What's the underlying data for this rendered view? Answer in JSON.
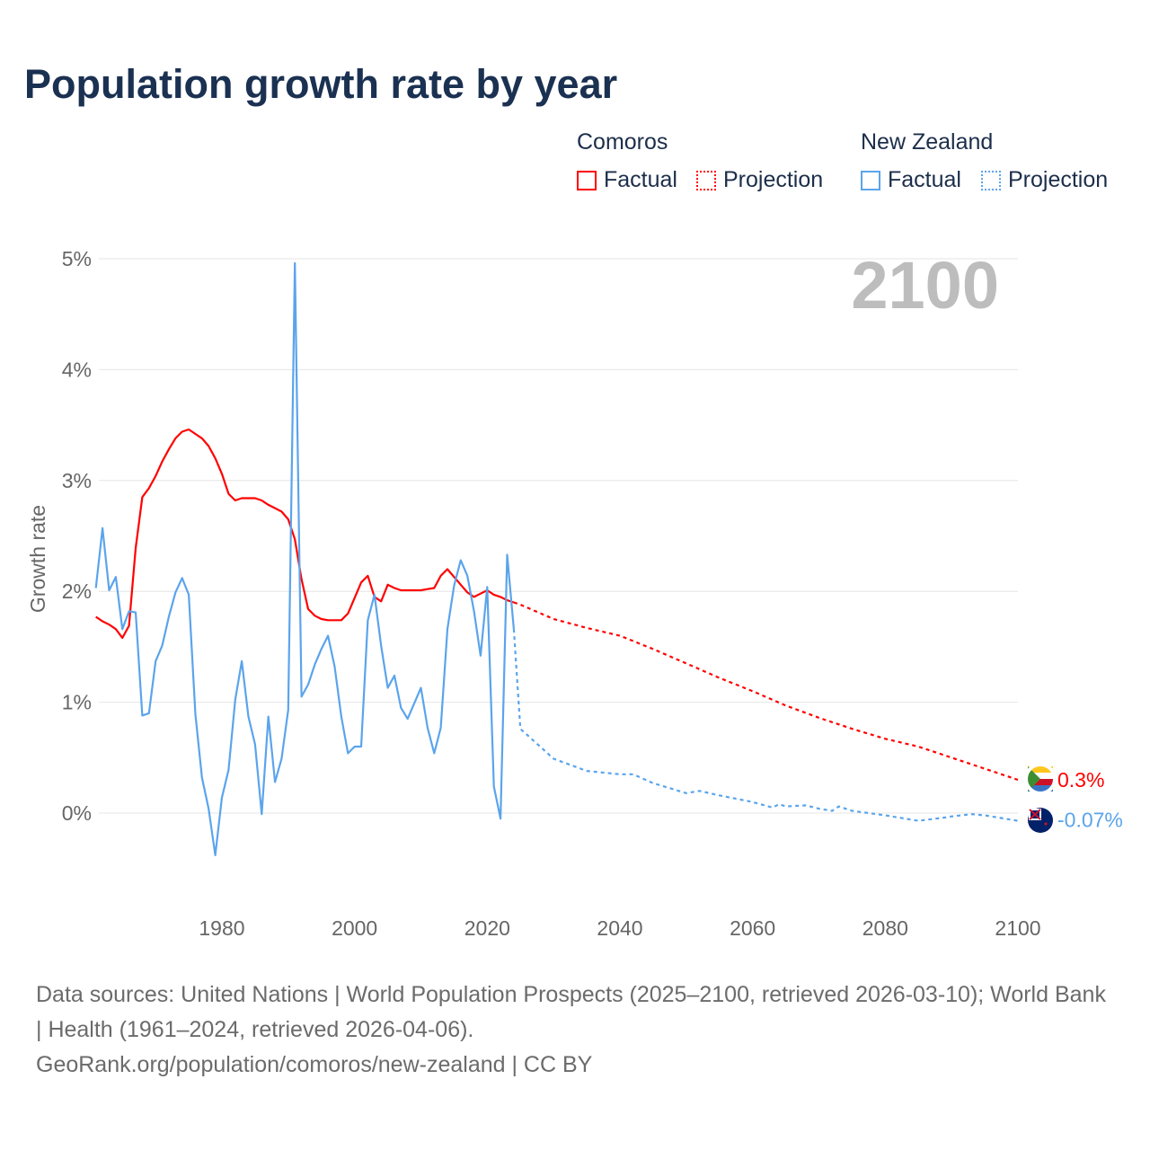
{
  "title": "Population growth rate by year",
  "legend": {
    "groups": [
      {
        "name": "Comoros",
        "factual": "Factual",
        "projection": "Projection",
        "color": "#ff0000"
      },
      {
        "name": "New Zealand",
        "factual": "Factual",
        "projection": "Projection",
        "color": "#5ba4ec"
      }
    ]
  },
  "year_display": "2100",
  "footer": {
    "line1": "Data sources: United Nations | World Population Prospects (2025–2100, retrieved 2026-03-10); World Bank | Health (1961–2024, retrieved 2026-04-06).",
    "line2": "GeoRank.org/population/comoros/new-zealand | CC BY"
  },
  "chart_data": {
    "type": "line",
    "title": "Population growth rate by year",
    "xlabel": "",
    "ylabel": "Growth rate",
    "xlim": [
      1961,
      2100
    ],
    "ylim": [
      -0.8,
      5.0
    ],
    "x_ticks": [
      1980,
      2000,
      2020,
      2040,
      2060,
      2080,
      2100
    ],
    "x_tick_labels": [
      "1980",
      "2000",
      "2020",
      "2040",
      "2060",
      "2080",
      "2100"
    ],
    "y_ticks": [
      0,
      1,
      2,
      3,
      4,
      5
    ],
    "y_tick_labels": [
      "0%",
      "1%",
      "2%",
      "3%",
      "4%",
      "5%"
    ],
    "grid": true,
    "legend_position": "top-right",
    "series": [
      {
        "name": "Comoros Factual",
        "color": "#ff0000",
        "style": "solid",
        "x": [
          1961,
          1962,
          1963,
          1964,
          1965,
          1966,
          1967,
          1968,
          1969,
          1970,
          1971,
          1972,
          1973,
          1974,
          1975,
          1976,
          1977,
          1978,
          1979,
          1980,
          1981,
          1982,
          1983,
          1984,
          1985,
          1986,
          1987,
          1988,
          1989,
          1990,
          1991,
          1992,
          1993,
          1994,
          1995,
          1996,
          1997,
          1998,
          1999,
          2000,
          2001,
          2002,
          2003,
          2004,
          2005,
          2006,
          2007,
          2008,
          2009,
          2010,
          2011,
          2012,
          2013,
          2014,
          2015,
          2016,
          2017,
          2018,
          2019,
          2020,
          2021,
          2022,
          2023,
          2024
        ],
        "values": [
          1.77,
          1.73,
          1.7,
          1.66,
          1.58,
          1.69,
          2.39,
          2.85,
          2.93,
          3.04,
          3.17,
          3.28,
          3.38,
          3.44,
          3.46,
          3.42,
          3.38,
          3.31,
          3.2,
          3.06,
          2.88,
          2.82,
          2.84,
          2.84,
          2.84,
          2.82,
          2.78,
          2.75,
          2.72,
          2.65,
          2.47,
          2.11,
          1.84,
          1.78,
          1.75,
          1.74,
          1.74,
          1.74,
          1.8,
          1.94,
          2.08,
          2.14,
          1.95,
          1.91,
          2.06,
          2.03,
          2.01,
          2.01,
          2.01,
          2.01,
          2.02,
          2.03,
          2.14,
          2.2,
          2.13,
          2.06,
          1.99,
          1.95,
          1.98,
          2.01,
          1.97,
          1.95,
          1.92,
          1.9
        ]
      },
      {
        "name": "Comoros Projection",
        "color": "#ff0000",
        "style": "dotted",
        "x": [
          2024,
          2025,
          2030,
          2035,
          2040,
          2045,
          2050,
          2055,
          2060,
          2065,
          2070,
          2075,
          2080,
          2085,
          2090,
          2095,
          2100
        ],
        "values": [
          1.9,
          1.88,
          1.75,
          1.67,
          1.6,
          1.48,
          1.35,
          1.22,
          1.1,
          0.97,
          0.86,
          0.76,
          0.67,
          0.6,
          0.5,
          0.4,
          0.3
        ]
      },
      {
        "name": "New Zealand Factual",
        "color": "#5ba4ec",
        "style": "solid",
        "x": [
          1961,
          1962,
          1963,
          1964,
          1965,
          1966,
          1967,
          1968,
          1969,
          1970,
          1971,
          1972,
          1973,
          1974,
          1975,
          1976,
          1977,
          1978,
          1979,
          1980,
          1981,
          1982,
          1983,
          1984,
          1985,
          1986,
          1987,
          1988,
          1989,
          1990,
          1991,
          1992,
          1993,
          1994,
          1995,
          1996,
          1997,
          1998,
          1999,
          2000,
          2001,
          2002,
          2003,
          2004,
          2005,
          2006,
          2007,
          2008,
          2009,
          2010,
          2011,
          2012,
          2013,
          2014,
          2015,
          2016,
          2017,
          2018,
          2019,
          2020,
          2021,
          2022,
          2023,
          2024
        ],
        "values": [
          2.03,
          2.57,
          2.01,
          2.13,
          1.66,
          1.82,
          1.81,
          0.88,
          0.9,
          1.37,
          1.51,
          1.77,
          1.99,
          2.12,
          1.97,
          0.89,
          0.32,
          0.04,
          -0.38,
          0.14,
          0.39,
          1.02,
          1.37,
          0.87,
          0.62,
          -0.01,
          0.87,
          0.28,
          0.49,
          0.93,
          4.96,
          1.05,
          1.16,
          1.34,
          1.48,
          1.6,
          1.32,
          0.87,
          0.54,
          0.6,
          0.6,
          1.74,
          1.97,
          1.51,
          1.13,
          1.24,
          0.95,
          0.85,
          0.99,
          1.13,
          0.77,
          0.54,
          0.77,
          1.66,
          2.05,
          2.28,
          2.14,
          1.82,
          1.42,
          2.04,
          0.24,
          -0.05,
          2.33,
          1.66
        ]
      },
      {
        "name": "New Zealand Projection",
        "color": "#5ba4ec",
        "style": "dotted",
        "x": [
          2024,
          2025,
          2030,
          2035,
          2040,
          2042,
          2045,
          2050,
          2052,
          2055,
          2060,
          2063,
          2064,
          2065,
          2068,
          2070,
          2072,
          2073,
          2075,
          2080,
          2085,
          2089,
          2090,
          2093,
          2095,
          2100
        ],
        "values": [
          1.66,
          0.76,
          0.49,
          0.38,
          0.35,
          0.35,
          0.27,
          0.18,
          0.2,
          0.16,
          0.1,
          0.05,
          0.08,
          0.06,
          0.07,
          0.04,
          0.02,
          0.06,
          0.02,
          -0.02,
          -0.07,
          -0.04,
          -0.03,
          -0.01,
          -0.02,
          -0.07
        ]
      }
    ],
    "end_labels": [
      {
        "series": "Comoros",
        "text": "0.3%",
        "value": 0.3,
        "color": "#ff0000"
      },
      {
        "series": "New Zealand",
        "text": "-0.07%",
        "value": -0.07,
        "color": "#5ba4ec"
      }
    ]
  }
}
